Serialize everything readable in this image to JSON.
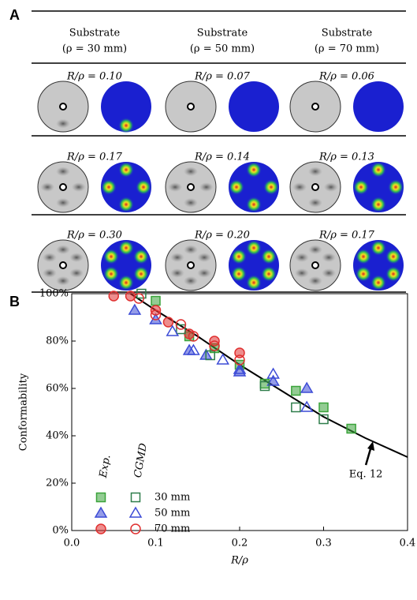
{
  "panel_a": {
    "label": "A",
    "columns": [
      {
        "title": "Substrate",
        "subtitle": "(ρ = 30 mm)",
        "cells": [
          "R/ρ = 0.10",
          "R/ρ = 0.17",
          "R/ρ = 0.30"
        ]
      },
      {
        "title": "Substrate",
        "subtitle": "(ρ = 50 mm)",
        "cells": [
          "R/ρ = 0.07",
          "R/ρ = 0.14",
          "R/ρ = 0.20"
        ]
      },
      {
        "title": "Substrate",
        "subtitle": "(ρ = 70 mm)",
        "cells": [
          "R/ρ = 0.06",
          "R/ρ = 0.13",
          "R/ρ = 0.17"
        ]
      }
    ]
  },
  "chart_data": {
    "type": "scatter",
    "panel_label": "B",
    "x_label": "R/ρ",
    "y_label": "Conformability",
    "xlim": [
      0,
      0.4
    ],
    "ylim": [
      0,
      100
    ],
    "xticks": [
      {
        "value": 0,
        "label": "0.0"
      },
      0.1,
      0.2,
      0.3,
      0.4
    ],
    "yticks": [
      {
        "value": 0,
        "label": "0%"
      },
      {
        "value": 20,
        "label": "20%"
      },
      {
        "value": 40,
        "label": "40%"
      },
      {
        "value": 60,
        "label": "60%"
      },
      {
        "value": 80,
        "label": "80%"
      },
      {
        "value": 100,
        "label": "100%"
      }
    ],
    "groups": [
      {
        "name": "Exp.",
        "filled": true,
        "series": [
          {
            "name": "30 mm",
            "color": "#3aa33a",
            "marker": "square",
            "x": [
              0.1,
              0.14,
              0.17,
              0.2,
              0.23,
              0.267,
              0.3,
              0.333
            ],
            "values": [
              97,
              82,
              77,
              70,
              62,
              59,
              52,
              43
            ]
          },
          {
            "name": "50 mm",
            "color": "#3c4bd6",
            "marker": "triangle",
            "x": [
              0.075,
              0.1,
              0.14,
              0.16,
              0.2,
              0.24,
              0.28
            ],
            "values": [
              93,
              89,
              76,
              74,
              67,
              63,
              60
            ]
          },
          {
            "name": "70 mm",
            "color": "#e03030",
            "marker": "circle",
            "x": [
              0.05,
              0.07,
              0.1,
              0.115,
              0.14,
              0.17,
              0.2
            ],
            "values": [
              99,
              99,
              93,
              88,
              83,
              80,
              75
            ]
          }
        ]
      },
      {
        "name": "CGMD",
        "filled": false,
        "series": [
          {
            "color": "#2e7d4a",
            "marker": "square",
            "x": [
              0.083,
              0.13,
              0.165,
              0.23,
              0.267,
              0.3
            ],
            "values": [
              100,
              85,
              74,
              61,
              52,
              47
            ]
          },
          {
            "color": "#3c4bd6",
            "marker": "triangle",
            "x": [
              0.12,
              0.145,
              0.18,
              0.2,
              0.24,
              0.28
            ],
            "values": [
              84,
              76,
              72,
              68,
              66,
              52
            ]
          },
          {
            "color": "#e03030",
            "marker": "circle",
            "x": [
              0.08,
              0.1,
              0.13,
              0.145,
              0.17,
              0.2
            ],
            "values": [
              98,
              91,
              87,
              82,
              78,
              72
            ]
          }
        ]
      }
    ],
    "curve": {
      "color": "#000000",
      "x": [
        0.07,
        0.1,
        0.15,
        0.2,
        0.25,
        0.3,
        0.35,
        0.4
      ],
      "values": [
        100,
        93,
        82,
        70,
        59,
        48,
        39,
        31
      ]
    },
    "annotation": {
      "text": "Eq. 12",
      "x": 0.355,
      "y": 37
    }
  }
}
